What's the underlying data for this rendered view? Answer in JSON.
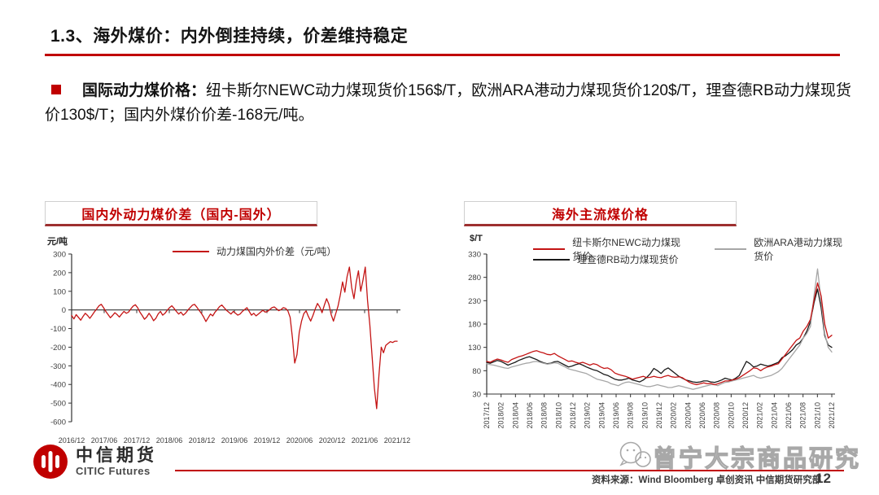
{
  "page": {
    "title": "1.3、海外煤价：内外倒挂持续，价差维持稳定"
  },
  "bullet": {
    "label": "国际动力煤价格：",
    "text": "纽卡斯尔NEWC动力煤现货价156$/T，欧洲ARA港动力煤现货价120$/T，理查德RB动力煤现货价130$/T；国内外煤价价差-168元/吨。"
  },
  "colors": {
    "accent": "#C00000",
    "line_red": "#C41414",
    "line_gray": "#A6A6A6",
    "line_black": "#1A1A1A"
  },
  "footer": {
    "logo_cn": "中信期货",
    "logo_en": "CITIC Futures",
    "source": "资料来源：Wind Bloomberg 卓创资讯 中信期货研究部",
    "page_number": "12",
    "watermark": "曾宁大宗商品研究"
  },
  "chart_data": [
    {
      "type": "line",
      "title": "国内外动力煤价差（国内-国外）",
      "ylabel": "元/吨",
      "ylim": [
        -600,
        300
      ],
      "yticks": [
        300,
        200,
        100,
        0,
        -100,
        -200,
        -300,
        -400,
        -500,
        -600
      ],
      "xtick_labels": [
        "2016/12",
        "2017/06",
        "2017/12",
        "2018/06",
        "2018/12",
        "2019/06",
        "2019/12",
        "2020/06",
        "2020/12",
        "2021/06",
        "2021/12"
      ],
      "grid": false,
      "legend_position": "top",
      "zero_line": true,
      "series": [
        {
          "name": "动力煤国内外价差（元/吨）",
          "color": "#C41414",
          "values": [
            -30,
            -48,
            -25,
            -40,
            -55,
            -35,
            -18,
            -30,
            -45,
            -28,
            -10,
            5,
            22,
            30,
            12,
            -8,
            -25,
            -42,
            -30,
            -15,
            -25,
            -38,
            -22,
            -8,
            -18,
            -12,
            5,
            20,
            28,
            12,
            -12,
            -30,
            -50,
            -38,
            -18,
            -35,
            -58,
            -45,
            -22,
            -8,
            -28,
            -18,
            -2,
            12,
            22,
            8,
            -8,
            -22,
            -12,
            -28,
            -18,
            -2,
            12,
            25,
            30,
            15,
            -2,
            -18,
            -38,
            -62,
            -42,
            -22,
            -32,
            -12,
            2,
            18,
            26,
            12,
            -2,
            -12,
            -22,
            -8,
            -18,
            -28,
            -22,
            -8,
            2,
            12,
            -8,
            -28,
            -18,
            -32,
            -22,
            -12,
            -2,
            -12,
            -8,
            2,
            12,
            16,
            6,
            -4,
            2,
            12,
            8,
            -5,
            -40,
            -150,
            -285,
            -240,
            -120,
            -60,
            -20,
            -5,
            -35,
            -60,
            -30,
            5,
            35,
            15,
            -15,
            25,
            60,
            30,
            -25,
            -60,
            -20,
            20,
            80,
            150,
            95,
            180,
            230,
            120,
            60,
            150,
            210,
            100,
            160,
            230,
            50,
            -80,
            -250,
            -420,
            -530,
            -350,
            -200,
            -230,
            -190,
            -180,
            -170,
            -175,
            -168,
            -168
          ]
        }
      ]
    },
    {
      "type": "line",
      "title": "海外主流煤价格",
      "ylabel": "$/T",
      "ylim": [
        30,
        330
      ],
      "yticks": [
        330,
        280,
        230,
        180,
        130,
        80,
        30
      ],
      "xtick_labels": [
        "2017/12",
        "2018/02",
        "2018/04",
        "2018/06",
        "2018/08",
        "2018/10",
        "2018/12",
        "2019/02",
        "2019/04",
        "2019/06",
        "2019/08",
        "2019/10",
        "2019/12",
        "2020/02",
        "2020/04",
        "2020/06",
        "2020/08",
        "2020/10",
        "2020/12",
        "2021/02",
        "2021/04",
        "2021/06",
        "2021/08",
        "2021/10",
        "2021/12"
      ],
      "grid": false,
      "legend_position": "top",
      "zero_line": false,
      "series": [
        {
          "name": "纽卡斯尔NEWC动力煤现货价",
          "color": "#C41414",
          "values": [
            100,
            98,
            102,
            105,
            103,
            100,
            98,
            104,
            107,
            110,
            112,
            115,
            118,
            121,
            123,
            120,
            118,
            115,
            114,
            117,
            112,
            108,
            104,
            100,
            101,
            98,
            96,
            98,
            95,
            92,
            95,
            93,
            88,
            85,
            86,
            82,
            75,
            72,
            70,
            68,
            65,
            62,
            64,
            66,
            68,
            65,
            66,
            68,
            66,
            65,
            68,
            70,
            67,
            66,
            67,
            65,
            60,
            55,
            52,
            50,
            52,
            54,
            52,
            53,
            50,
            52,
            55,
            58,
            58,
            60,
            62,
            65,
            70,
            75,
            80,
            86,
            85,
            80,
            85,
            88,
            90,
            93,
            95,
            105,
            115,
            125,
            135,
            145,
            150,
            165,
            175,
            190,
            230,
            268,
            240,
            180,
            150,
            156
          ]
        },
        {
          "name": "欧洲ARA港动力煤现货价",
          "color": "#A6A6A6",
          "values": [
            95,
            93,
            92,
            90,
            88,
            86,
            85,
            88,
            90,
            92,
            94,
            96,
            97,
            99,
            100,
            98,
            96,
            94,
            95,
            97,
            96,
            92,
            88,
            84,
            82,
            80,
            78,
            76,
            74,
            70,
            66,
            62,
            60,
            58,
            56,
            52,
            50,
            48,
            52,
            55,
            56,
            54,
            52,
            50,
            48,
            46,
            46,
            48,
            50,
            48,
            46,
            44,
            44,
            46,
            48,
            46,
            44,
            42,
            40,
            42,
            44,
            46,
            48,
            50,
            50,
            48,
            52,
            55,
            56,
            58,
            60,
            62,
            64,
            66,
            68,
            70,
            66,
            64,
            66,
            68,
            70,
            74,
            78,
            85,
            95,
            105,
            115,
            125,
            135,
            150,
            160,
            175,
            240,
            298,
            230,
            160,
            130,
            120
          ]
        },
        {
          "name": "理查德RB动力煤现货价",
          "color": "#1A1A1A",
          "values": [
            98,
            96,
            99,
            102,
            100,
            96,
            92,
            95,
            98,
            102,
            105,
            108,
            110,
            107,
            104,
            100,
            97,
            95,
            96,
            99,
            100,
            96,
            92,
            88,
            90,
            93,
            95,
            92,
            88,
            85,
            82,
            80,
            76,
            72,
            70,
            66,
            62,
            60,
            60,
            62,
            64,
            60,
            58,
            56,
            60,
            66,
            74,
            85,
            80,
            74,
            82,
            86,
            80,
            74,
            68,
            64,
            60,
            58,
            56,
            55,
            56,
            58,
            58,
            56,
            55,
            57,
            60,
            64,
            62,
            60,
            64,
            70,
            85,
            100,
            95,
            88,
            90,
            94,
            92,
            90,
            92,
            95,
            98,
            108,
            112,
            118,
            125,
            135,
            140,
            150,
            165,
            185,
            225,
            255,
            215,
            155,
            135,
            130
          ]
        }
      ]
    }
  ]
}
